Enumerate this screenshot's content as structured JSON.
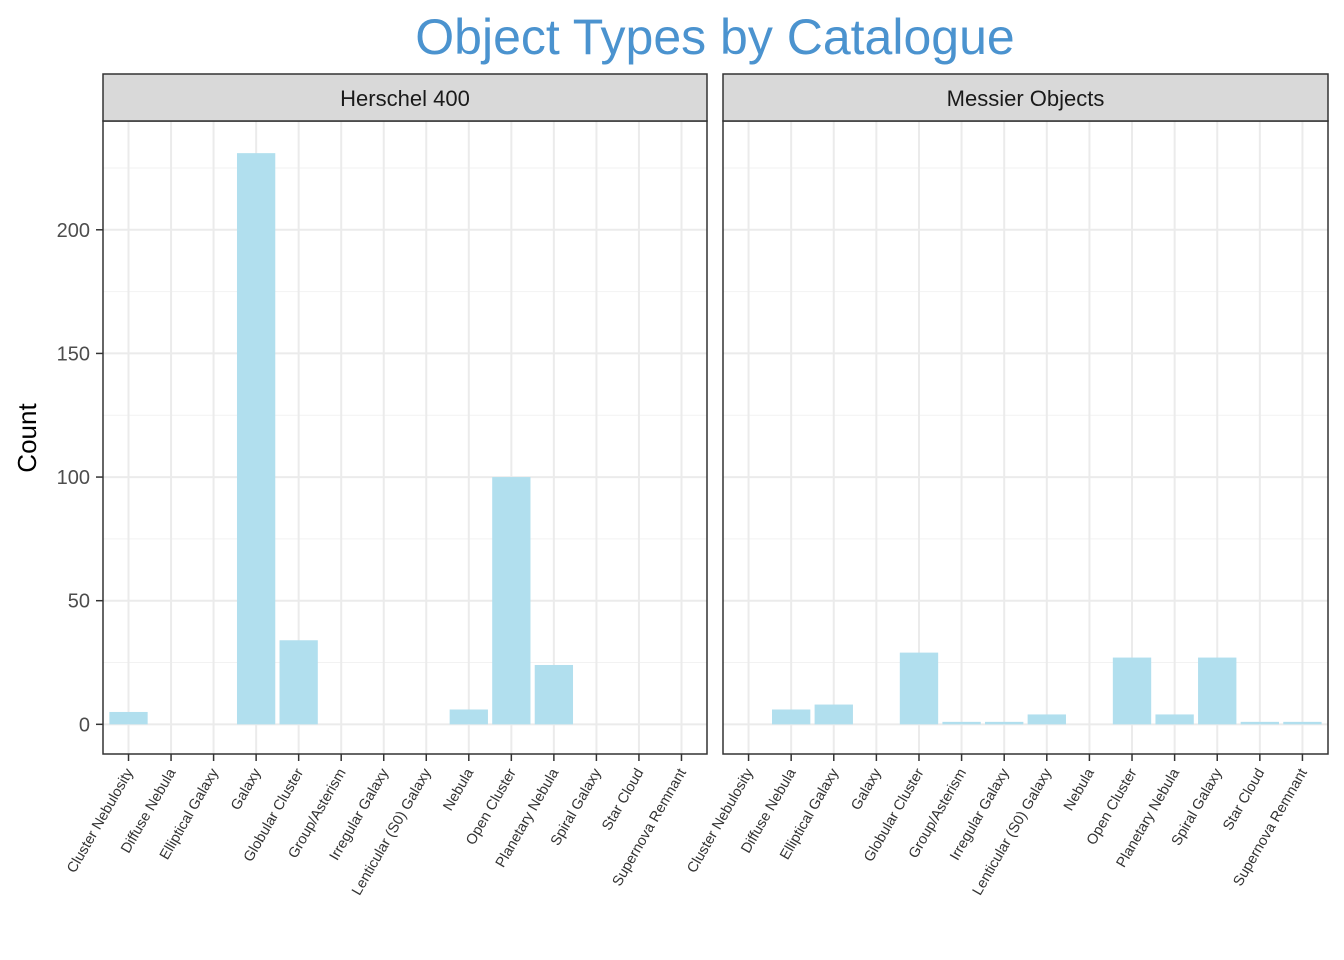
{
  "chart_data": {
    "type": "bar",
    "title": "Object Types by Catalogue",
    "xlabel": "",
    "ylabel": "Count",
    "ylim": [
      -12,
      244
    ],
    "yticks": [
      0,
      50,
      100,
      150,
      200
    ],
    "grid": true,
    "bar_color": "#b1dfee",
    "title_color": "#4b93cf",
    "categories": [
      "Cluster Nebulosity",
      "Diffuse Nebula",
      "Elliptical Galaxy",
      "Galaxy",
      "Globular Cluster",
      "Group/Asterism",
      "Irregular Galaxy",
      "Lenticular (S0) Galaxy",
      "Nebula",
      "Open Cluster",
      "Planetary Nebula",
      "Spiral Galaxy",
      "Star Cloud",
      "Supernova Remnant"
    ],
    "panels": [
      {
        "name": "Herschel 400",
        "values": [
          5,
          0,
          0,
          231,
          34,
          0,
          0,
          0,
          6,
          100,
          24,
          0,
          0,
          0
        ]
      },
      {
        "name": "Messier Objects",
        "values": [
          0,
          6,
          8,
          0,
          29,
          1,
          1,
          4,
          0,
          27,
          4,
          27,
          1,
          1
        ]
      }
    ]
  }
}
